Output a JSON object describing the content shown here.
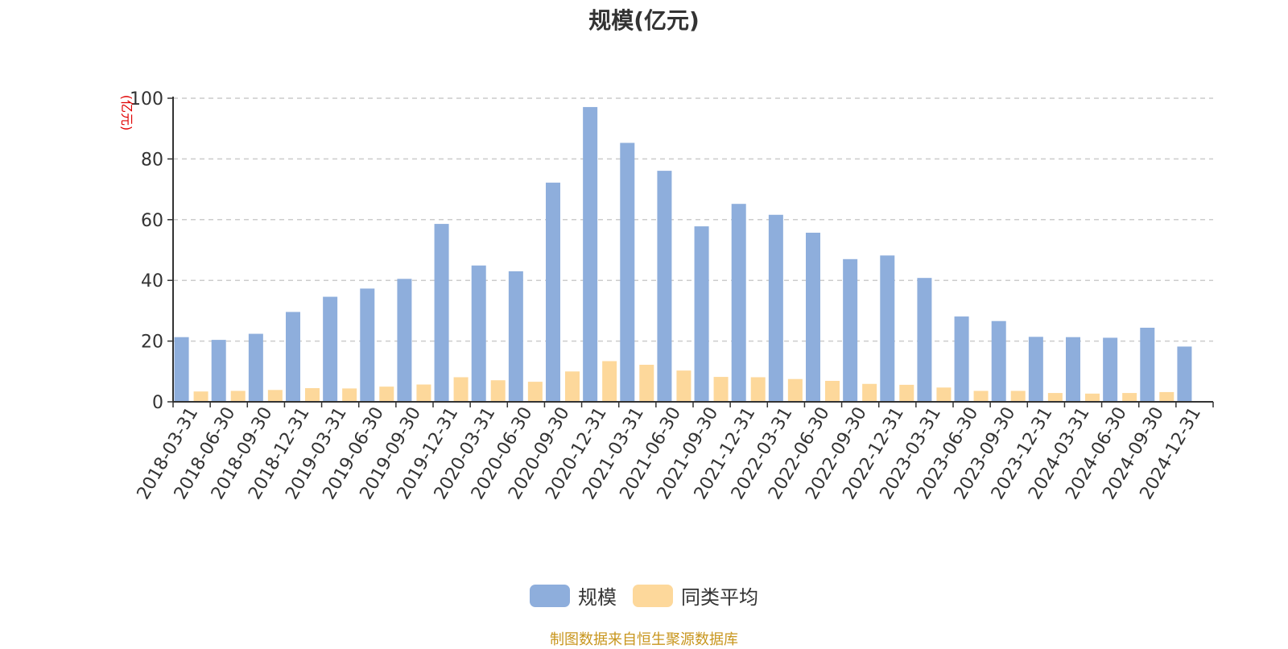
{
  "chart_data": {
    "type": "bar",
    "title": "规模(亿元)",
    "ylabel": "(亿元)",
    "xlabel": "",
    "ylim": [
      0,
      100
    ],
    "yticks": [
      0,
      20,
      40,
      60,
      80,
      100
    ],
    "grid": true,
    "legend_position": "bottom-center",
    "categories": [
      "2018-03-31",
      "2018-06-30",
      "2018-09-30",
      "2018-12-31",
      "2019-03-31",
      "2019-06-30",
      "2019-09-30",
      "2019-12-31",
      "2020-03-31",
      "2020-06-30",
      "2020-09-30",
      "2020-12-31",
      "2021-03-31",
      "2021-06-30",
      "2021-09-30",
      "2021-12-31",
      "2022-03-31",
      "2022-06-30",
      "2022-09-30",
      "2022-12-31",
      "2023-03-31",
      "2023-06-30",
      "2023-09-30",
      "2023-12-31",
      "2024-03-31",
      "2024-06-30",
      "2024-09-30",
      "2024-12-31"
    ],
    "series": [
      {
        "name": "规模",
        "color": "#8eaedc",
        "values": [
          21.3,
          20.4,
          22.4,
          29.6,
          34.6,
          37.3,
          40.5,
          58.6,
          44.9,
          43.0,
          72.2,
          97.1,
          85.3,
          76.1,
          57.8,
          65.2,
          61.6,
          55.7,
          47.0,
          48.2,
          40.8,
          28.1,
          26.6,
          21.4,
          21.3,
          21.1,
          24.4,
          18.2
        ]
      },
      {
        "name": "同类平均",
        "color": "#fdd89b",
        "values": [
          3.4,
          3.6,
          3.9,
          4.5,
          4.4,
          5.0,
          5.7,
          8.1,
          7.1,
          6.6,
          10.0,
          13.4,
          12.2,
          10.3,
          8.2,
          8.1,
          7.5,
          6.9,
          5.9,
          5.6,
          4.7,
          3.6,
          3.6,
          2.9,
          2.7,
          2.9,
          3.2,
          null
        ]
      }
    ]
  },
  "footer": {
    "source": "制图数据来自恒生聚源数据库"
  }
}
